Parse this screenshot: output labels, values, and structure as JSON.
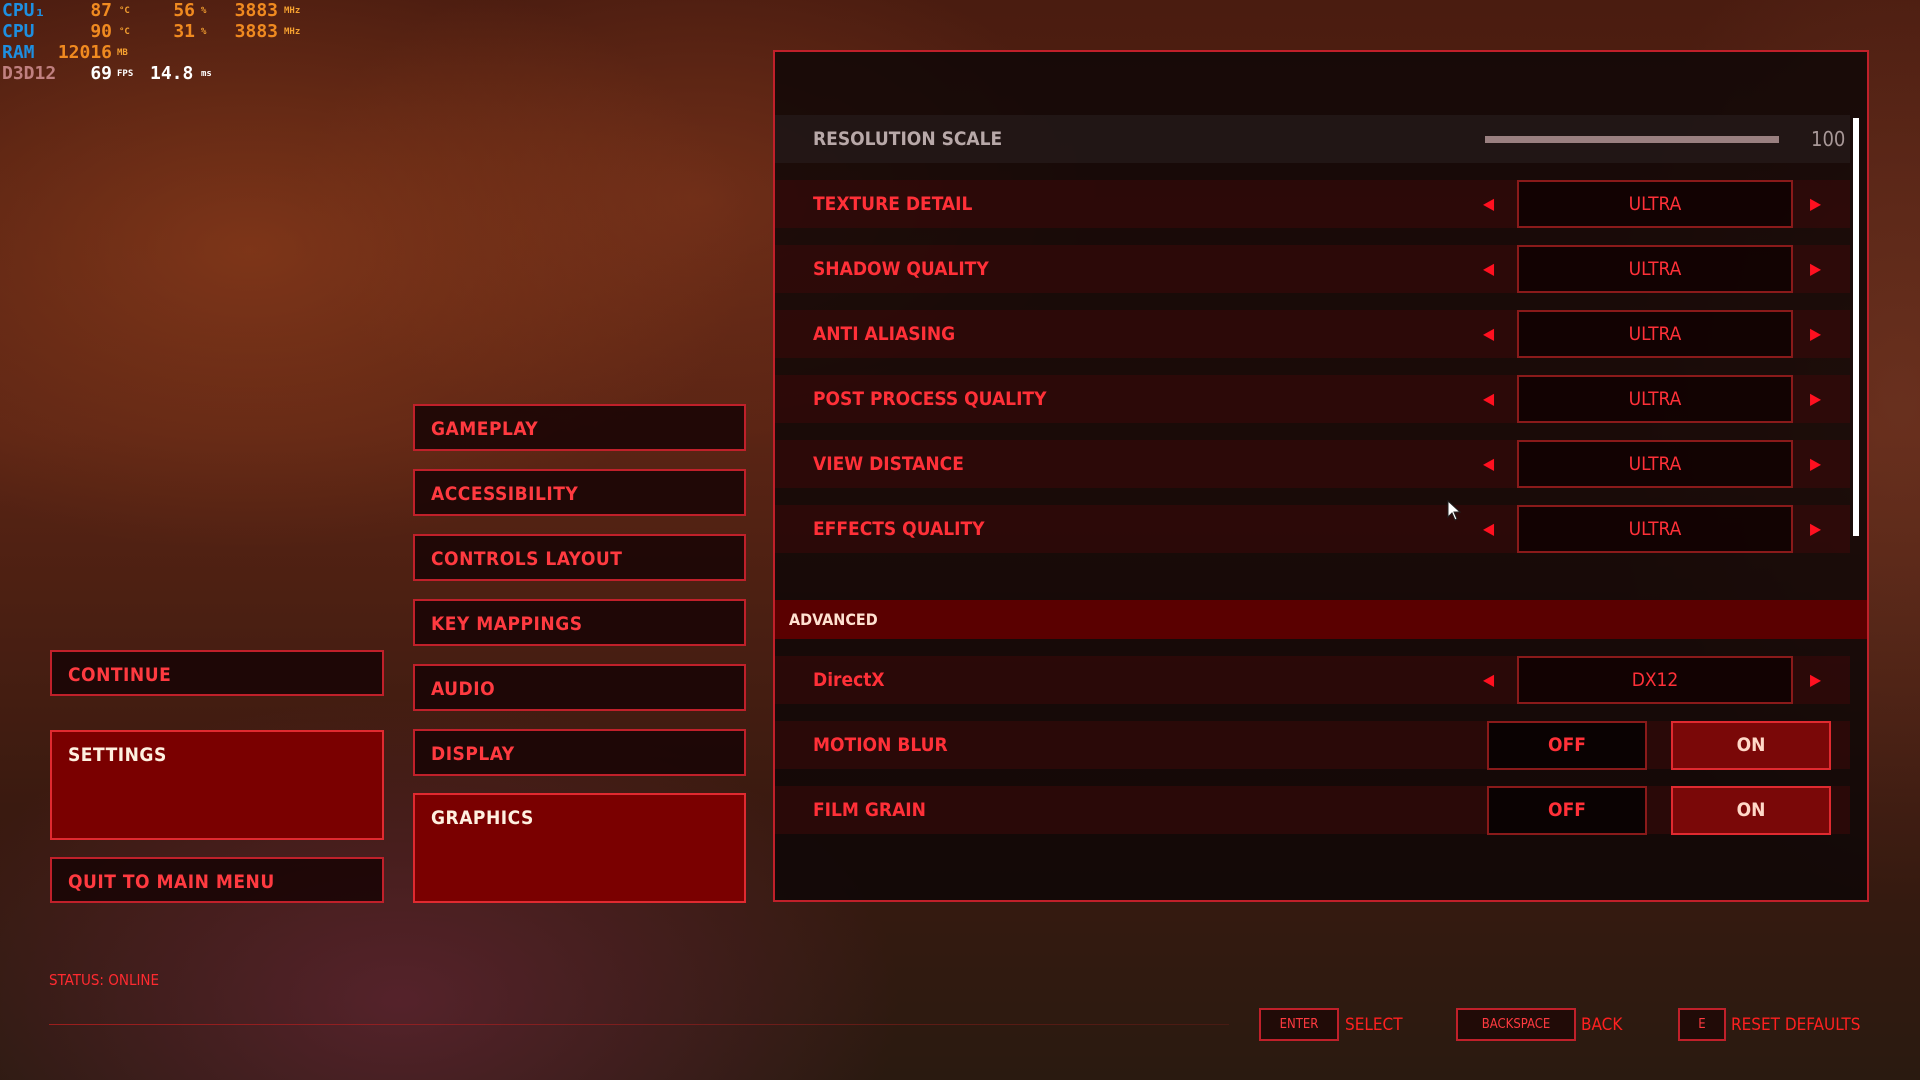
{
  "overlay": {
    "cpu1": {
      "label": "CPU₁",
      "temp": "87",
      "temp_unit": "°C",
      "load": "56",
      "load_unit": "%",
      "clock": "3883",
      "clock_unit": "MHz"
    },
    "cpu2": {
      "label": "CPU",
      "temp": "90",
      "temp_unit": "°C",
      "load": "31",
      "load_unit": "%",
      "clock": "3883",
      "clock_unit": "MHz"
    },
    "ram": {
      "label": "RAM",
      "value": "12016",
      "unit": "MB"
    },
    "api": {
      "label": "D3D12",
      "fps": "69",
      "fps_unit": "FPS",
      "frametime": "14.8",
      "frametime_unit": "ms"
    }
  },
  "main_menu": {
    "items": [
      {
        "label": "CONTINUE"
      },
      {
        "label": "SETTINGS",
        "active": true
      },
      {
        "label": "QUIT TO MAIN MENU"
      }
    ]
  },
  "settings_menu": {
    "items": [
      {
        "label": "GAMEPLAY"
      },
      {
        "label": "ACCESSIBILITY"
      },
      {
        "label": "CONTROLS LAYOUT"
      },
      {
        "label": "KEY MAPPINGS"
      },
      {
        "label": "AUDIO"
      },
      {
        "label": "DISPLAY"
      },
      {
        "label": "GRAPHICS",
        "active": true
      }
    ]
  },
  "graphics": {
    "resolution_scale": {
      "label": "RESOLUTION SCALE",
      "value": "100",
      "percent": 100
    },
    "options": [
      {
        "label": "TEXTURE DETAIL",
        "value": "ULTRA"
      },
      {
        "label": "SHADOW QUALITY",
        "value": "ULTRA"
      },
      {
        "label": "ANTI ALIASING",
        "value": "ULTRA"
      },
      {
        "label": "POST PROCESS QUALITY",
        "value": "ULTRA"
      },
      {
        "label": "VIEW DISTANCE",
        "value": "ULTRA"
      },
      {
        "label": "EFFECTS QUALITY",
        "value": "ULTRA"
      }
    ],
    "advanced_header": "ADVANCED",
    "directx": {
      "label": "DirectX",
      "value": "DX12"
    },
    "toggles": [
      {
        "label": "MOTION BLUR",
        "off": "OFF",
        "on": "ON",
        "selected": "ON"
      },
      {
        "label": "FILM GRAIN",
        "off": "OFF",
        "on": "ON",
        "selected": "ON"
      }
    ],
    "arrow_left": "◀",
    "arrow_right": "▶"
  },
  "status": "STATUS: ONLINE",
  "footer": [
    {
      "key": "ENTER",
      "action": "SELECT"
    },
    {
      "key": "BACKSPACE",
      "action": "BACK"
    },
    {
      "key": "E",
      "action": "RESET DEFAULTS"
    }
  ],
  "colors": {
    "accent": "#c0202a",
    "active": "#7a0000",
    "text": "#ff3038"
  }
}
